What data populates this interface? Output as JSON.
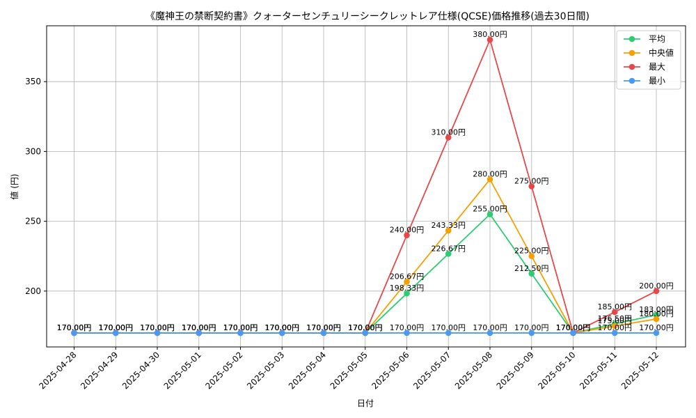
{
  "chart_data": {
    "type": "line",
    "title": "《魔神王の禁断契約書》クォーターセンチュリーシークレットレア仕様(QCSE)価格推移(過去30日間)",
    "xlabel": "日付",
    "ylabel": "値 (円)",
    "ylim": [
      160,
      390
    ],
    "yticks": [
      200,
      250,
      300,
      350
    ],
    "grid": true,
    "legend_position": "top-right",
    "value_suffix": "円",
    "categories": [
      "2025-04-28",
      "2025-04-29",
      "2025-04-30",
      "2025-05-01",
      "2025-05-02",
      "2025-05-03",
      "2025-05-04",
      "2025-05-05",
      "2025-05-06",
      "2025-05-07",
      "2025-05-08",
      "2025-05-09",
      "2025-05-10",
      "2025-05-11",
      "2025-05-12"
    ],
    "series": [
      {
        "name": "平均",
        "color": "#2ecc71",
        "values": [
          170,
          170,
          170,
          170,
          170,
          170,
          170,
          170,
          198.33,
          226.67,
          255,
          212.5,
          170,
          176.5,
          183
        ]
      },
      {
        "name": "中央値",
        "color": "#f5a000",
        "values": [
          170,
          170,
          170,
          170,
          170,
          170,
          170,
          170,
          206.67,
          243.33,
          280,
          225,
          170,
          175,
          180
        ]
      },
      {
        "name": "最大",
        "color": "#e8474a",
        "values": [
          170,
          170,
          170,
          170,
          170,
          170,
          170,
          170,
          240,
          310,
          380,
          275,
          170,
          185,
          200
        ]
      },
      {
        "name": "最小",
        "color": "#4a9af5",
        "values": [
          170,
          170,
          170,
          170,
          170,
          170,
          170,
          170,
          170,
          170,
          170,
          170,
          170,
          170,
          170
        ]
      }
    ]
  }
}
